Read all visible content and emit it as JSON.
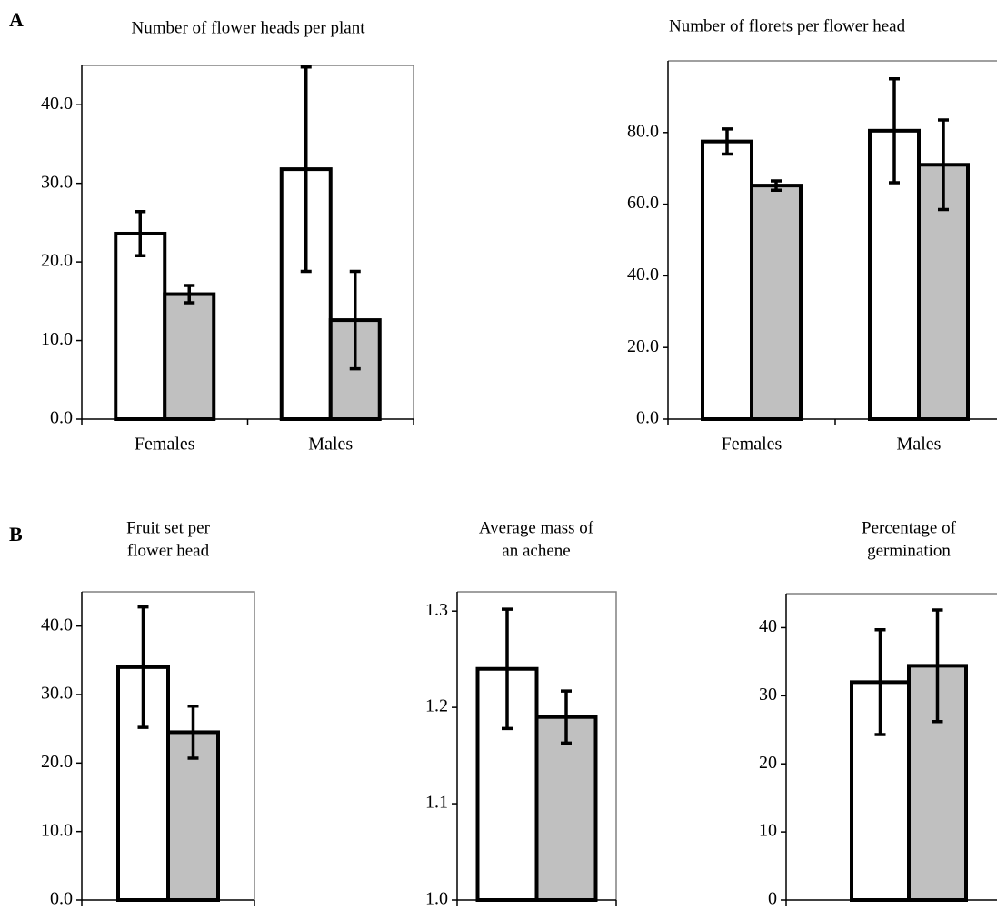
{
  "panel_labels": [
    "A",
    "B"
  ],
  "chart_data": [
    {
      "type": "bar",
      "title": [
        "Number of flower heads per plant"
      ],
      "categories": [
        "Females",
        "Males"
      ],
      "series": [
        {
          "color": "#ffffff",
          "values": [
            23.6,
            31.8
          ],
          "errors": [
            2.8,
            13
          ]
        },
        {
          "color": "#c0c0c0",
          "values": [
            15.9,
            12.6
          ],
          "errors": [
            1.1,
            6.2
          ]
        }
      ],
      "ylim": [
        0,
        45
      ],
      "yticks": [
        {
          "value": 0,
          "label": "0.0"
        },
        {
          "value": 10,
          "label": "10.0"
        },
        {
          "value": 20,
          "label": "20.0"
        },
        {
          "value": 30,
          "label": "30.0"
        },
        {
          "value": 40,
          "label": "40.0"
        }
      ]
    },
    {
      "type": "bar",
      "title": [
        "Number of florets per flower head"
      ],
      "categories": [
        "Females",
        "Males"
      ],
      "series": [
        {
          "color": "#ffffff",
          "values": [
            77.5,
            80.5
          ],
          "errors": [
            3.5,
            14.5
          ]
        },
        {
          "color": "#c0c0c0",
          "values": [
            65.2,
            71
          ],
          "errors": [
            1.3,
            12.5
          ]
        }
      ],
      "ylim": [
        0,
        100
      ],
      "yticks": [
        {
          "value": 0,
          "label": "0.0"
        },
        {
          "value": 20,
          "label": "20.0"
        },
        {
          "value": 40,
          "label": "40.0"
        },
        {
          "value": 60,
          "label": "60.0"
        },
        {
          "value": 80,
          "label": "80.0"
        }
      ]
    },
    {
      "type": "bar",
      "title": [
        "Fruit set per",
        "flower head"
      ],
      "categories": [
        null
      ],
      "series": [
        {
          "color": "#ffffff",
          "values": [
            34
          ],
          "errors": [
            8.8
          ]
        },
        {
          "color": "#c0c0c0",
          "values": [
            24.5
          ],
          "errors": [
            3.8
          ]
        }
      ],
      "ylim": [
        0,
        45
      ],
      "yticks": [
        {
          "value": 0,
          "label": "0.0"
        },
        {
          "value": 10,
          "label": "10.0"
        },
        {
          "value": 20,
          "label": "20.0"
        },
        {
          "value": 30,
          "label": "30.0"
        },
        {
          "value": 40,
          "label": "40.0"
        }
      ]
    },
    {
      "type": "bar",
      "title": [
        "Average mass of",
        "an achene"
      ],
      "categories": [
        null
      ],
      "series": [
        {
          "color": "#ffffff",
          "values": [
            1.24
          ],
          "errors": [
            0.062
          ]
        },
        {
          "color": "#c0c0c0",
          "values": [
            1.19
          ],
          "errors": [
            0.027
          ]
        }
      ],
      "ylim": [
        1,
        1.32
      ],
      "yticks": [
        {
          "value": 1,
          "label": "1.0"
        },
        1.1,
        1.2,
        1.3
      ]
    },
    {
      "type": "bar",
      "title": [
        "Percentage of",
        "germination"
      ],
      "categories": [
        null
      ],
      "series": [
        {
          "color": "#ffffff",
          "values": [
            32
          ],
          "errors": [
            7.7
          ]
        },
        {
          "color": "#c0c0c0",
          "values": [
            34.4
          ],
          "errors": [
            8.2
          ]
        }
      ],
      "ylim": [
        0,
        45
      ],
      "yticks": [
        0,
        10,
        20,
        30,
        40
      ]
    }
  ]
}
